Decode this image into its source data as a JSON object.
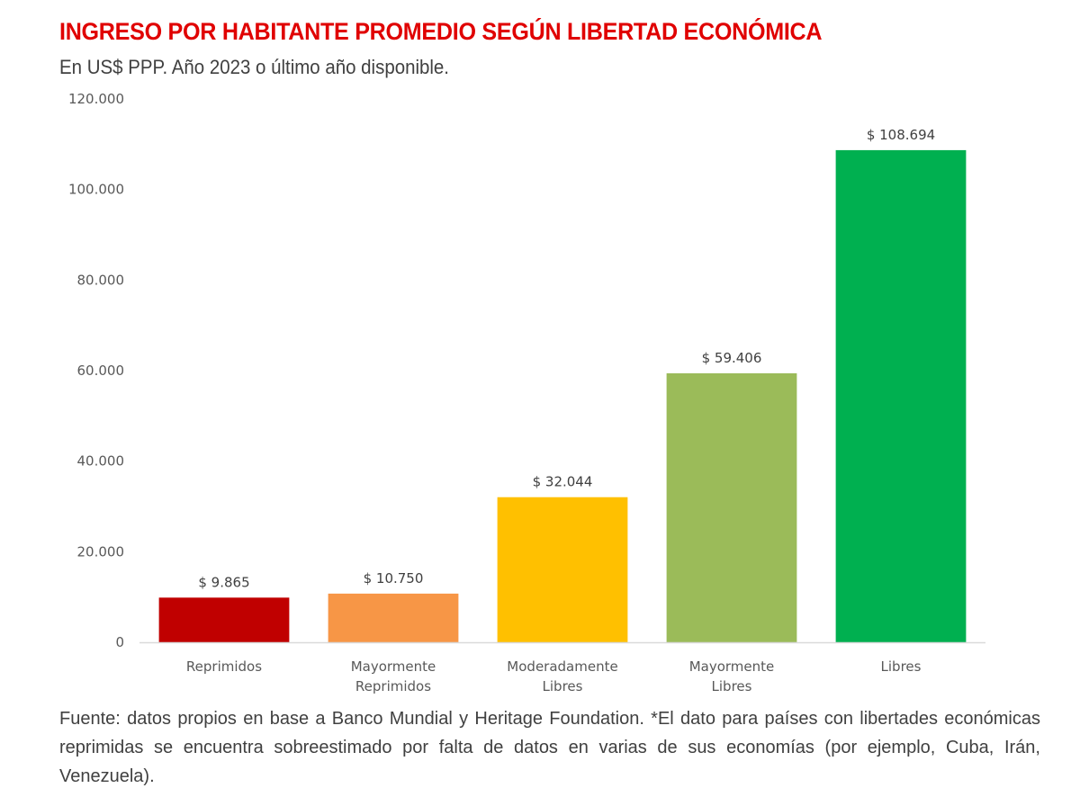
{
  "header": {
    "title": "INGRESO POR HABITANTE PROMEDIO SEGÚN LIBERTAD ECONÓMICA",
    "subtitle": "En US$ PPP. Año 2023 o último año disponible."
  },
  "footer": {
    "source": "Fuente: datos propios en base a Banco Mundial y Heritage Foundation. *El dato para países con libertades económicas reprimidas se encuentra sobreestimado por falta de datos en varias de sus economías (por ejemplo, Cuba, Irán, Venezuela)."
  },
  "chart_data": {
    "type": "bar",
    "title": "INGRESO POR HABITANTE PROMEDIO SEGÚN LIBERTAD ECONÓMICA",
    "subtitle": "En US$ PPP. Año 2023 o último año disponible.",
    "xlabel": "",
    "ylabel": "",
    "ylim": [
      0,
      120000
    ],
    "yticks": [
      0,
      20000,
      40000,
      60000,
      80000,
      100000,
      120000
    ],
    "ytick_labels": [
      "0",
      "20.000",
      "40.000",
      "60.000",
      "80.000",
      "100.000",
      "120.000"
    ],
    "grid": false,
    "legend": "none",
    "categories": [
      [
        "Reprimidos"
      ],
      [
        "Mayormente",
        "Reprimidos"
      ],
      [
        "Moderadamente",
        "Libres"
      ],
      [
        "Mayormente",
        "Libres"
      ],
      [
        "Libres"
      ]
    ],
    "values": [
      9865,
      10750,
      32044,
      59406,
      108694
    ],
    "data_labels": [
      "$ 9.865",
      "$ 10.750",
      "$ 32.044",
      "$ 59.406",
      "$ 108.694"
    ],
    "colors": [
      "#c00000",
      "#f79646",
      "#ffc000",
      "#9bbb59",
      "#00b050"
    ],
    "axis_color": "#d9d9d9"
  }
}
